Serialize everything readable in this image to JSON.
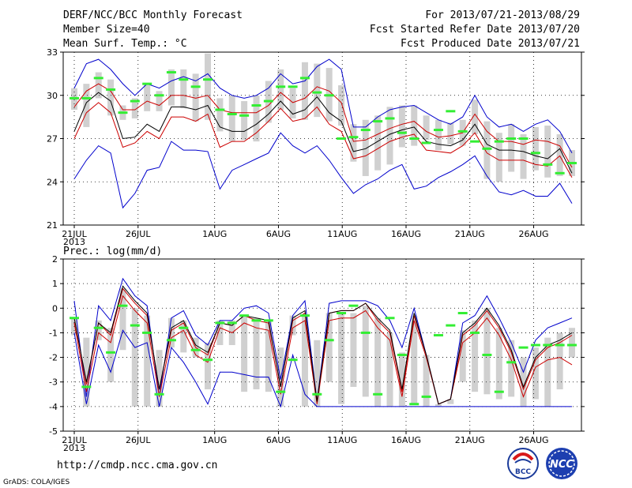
{
  "header": {
    "title": "DERF/NCC/BCC Monthly Forecast",
    "member_size": "Member Size=40",
    "variable": "Mean Surf. Temp.: °C",
    "period": "For 2013/07/21-2013/08/29",
    "fcst_started": "Fcst Started Refer Date 2013/07/20",
    "fcst_produced": "Fcst Produced Date 2013/07/21"
  },
  "footer": {
    "url": "http://cmdp.ncc.cma.gov.cn",
    "credit": "GrADS: COLA/IGES",
    "logo_left_text": "BCC",
    "logo_right_text": "NCC"
  },
  "colors": {
    "envelope": "#0000cc",
    "spread": "#cc0000",
    "mean": "#000000",
    "box": "#d0d0d0",
    "marker": "#33ee33"
  },
  "chart_data": [
    {
      "type": "line",
      "title": "Mean Surf. Temp.: °C",
      "ylim": [
        21,
        33
      ],
      "yticks": [
        21,
        24,
        27,
        30,
        33
      ],
      "xlim": [
        0,
        39
      ],
      "x_tick_positions": [
        0,
        5,
        11,
        16,
        21,
        26,
        31,
        36
      ],
      "x_tick_labels": [
        "21JUL",
        "26JUL",
        "1AUG",
        "6AUG",
        "11AUG",
        "16AUG",
        "21AUG",
        "26AUG"
      ],
      "x_year_label": "2013",
      "series": [
        {
          "name": "Maximum",
          "values": [
            30.5,
            32.2,
            32.5,
            31.8,
            30.8,
            30.0,
            30.8,
            30.5,
            31.0,
            31.3,
            31.0,
            31.5,
            30.5,
            30.0,
            29.8,
            30.0,
            30.5,
            31.5,
            30.8,
            31.0,
            32.0,
            32.5,
            31.8,
            27.8,
            27.8,
            28.5,
            29.0,
            29.2,
            29.3,
            28.8,
            28.3,
            28.0,
            28.5,
            30.0,
            28.5,
            27.8,
            28.0,
            27.5,
            28.0,
            28.3,
            27.5,
            26.0
          ]
        },
        {
          "name": "Upper",
          "values": [
            29.2,
            30.3,
            30.8,
            30.3,
            29.0,
            29.0,
            29.6,
            29.3,
            30.0,
            30.0,
            29.8,
            30.0,
            29.0,
            28.8,
            28.8,
            28.8,
            29.3,
            30.2,
            29.5,
            29.8,
            30.6,
            30.3,
            29.5,
            26.8,
            26.9,
            27.3,
            27.7,
            28.0,
            28.2,
            27.5,
            27.1,
            27.2,
            27.4,
            28.7,
            27.5,
            26.8,
            26.8,
            26.6,
            26.9,
            26.8,
            26.5,
            25.0
          ]
        },
        {
          "name": "Mean",
          "values": [
            27.5,
            29.5,
            30.2,
            29.6,
            27.0,
            27.1,
            28.0,
            27.5,
            29.2,
            29.2,
            29.0,
            29.3,
            27.8,
            27.5,
            27.5,
            28.0,
            28.7,
            29.6,
            28.7,
            29.0,
            29.9,
            28.8,
            28.2,
            26.1,
            26.3,
            26.8,
            27.3,
            27.6,
            27.8,
            26.8,
            26.6,
            26.5,
            26.9,
            28.0,
            26.6,
            26.2,
            26.2,
            26.1,
            25.8,
            25.6,
            26.3,
            24.6
          ]
        },
        {
          "name": "Lower",
          "values": [
            27.0,
            28.8,
            29.5,
            28.8,
            26.4,
            26.7,
            27.5,
            27.0,
            28.5,
            28.5,
            28.2,
            28.7,
            26.4,
            26.8,
            26.8,
            27.4,
            28.2,
            29.1,
            28.2,
            28.4,
            29.2,
            28.0,
            27.5,
            25.6,
            25.8,
            26.3,
            26.8,
            27.1,
            27.3,
            26.2,
            26.1,
            26.0,
            26.5,
            27.4,
            26.0,
            25.5,
            25.5,
            25.5,
            25.2,
            25.1,
            25.8,
            24.3
          ]
        },
        {
          "name": "Minimum",
          "values": [
            24.2,
            25.5,
            26.5,
            26.0,
            22.2,
            23.2,
            24.8,
            25.0,
            26.8,
            26.2,
            26.2,
            26.1,
            23.5,
            24.8,
            25.2,
            25.6,
            26.0,
            27.4,
            26.5,
            26.0,
            26.5,
            25.5,
            24.3,
            23.2,
            23.8,
            24.2,
            24.8,
            25.2,
            23.5,
            23.7,
            24.3,
            24.7,
            25.2,
            25.8,
            24.4,
            23.3,
            23.1,
            23.4,
            23.0,
            23.0,
            23.9,
            22.5
          ]
        },
        {
          "name": "Box Top",
          "values": [
            30.5,
            30.8,
            31.6,
            31.1,
            29.3,
            29.8,
            30.8,
            30.3,
            31.8,
            31.8,
            31.5,
            32.9,
            29.8,
            30.0,
            29.6,
            30.0,
            31.0,
            31.8,
            30.5,
            32.3,
            32.2,
            31.9,
            30.7,
            28.0,
            28.3,
            28.6,
            29.2,
            29.3,
            29.3,
            28.6,
            28.3,
            28.1,
            28.3,
            29.7,
            28.2,
            27.4,
            28.0,
            27.3,
            27.8,
            27.9,
            27.3,
            26.2
          ]
        },
        {
          "name": "Box Bottom",
          "values": [
            29.0,
            27.8,
            29.8,
            28.6,
            28.3,
            28.4,
            28.9,
            28.9,
            29.3,
            29.1,
            28.2,
            28.3,
            27.5,
            26.8,
            26.9,
            26.8,
            28.1,
            29.0,
            28.4,
            28.3,
            28.5,
            28.2,
            27.9,
            25.4,
            24.4,
            24.8,
            25.2,
            26.4,
            26.5,
            26.9,
            26.2,
            26.6,
            26.5,
            27.3,
            24.2,
            24.0,
            24.7,
            24.2,
            24.8,
            24.3,
            24.4,
            24.4
          ]
        },
        {
          "name": "Marker",
          "values": [
            29.8,
            29.8,
            31.2,
            30.4,
            28.8,
            29.6,
            30.8,
            30.0,
            31.6,
            31.1,
            30.6,
            31.1,
            29.0,
            28.7,
            28.6,
            29.3,
            29.6,
            30.6,
            30.6,
            31.2,
            30.2,
            30.0,
            27.0,
            27.1,
            27.6,
            28.2,
            28.4,
            27.4,
            27.0,
            26.7,
            27.6,
            28.9,
            27.5,
            26.8,
            26.3,
            26.8,
            27.0,
            27.0,
            26.0,
            25.2,
            24.6,
            25.3
          ]
        }
      ]
    },
    {
      "type": "line",
      "title": "Prec.: log(mm/d)",
      "ylim": [
        -5,
        2
      ],
      "yticks": [
        -5,
        -4,
        -3,
        -2,
        -1,
        0,
        1,
        2
      ],
      "xlim": [
        0,
        39
      ],
      "x_tick_positions": [
        0,
        5,
        11,
        16,
        21,
        26,
        31,
        36
      ],
      "x_tick_labels": [
        "21JUL",
        "26JUL",
        "1AUG",
        "6AUG",
        "11AUG",
        "16AUG",
        "21AUG",
        "26AUG"
      ],
      "x_year_label": "2013",
      "series": [
        {
          "name": "Maximum",
          "values": [
            0.3,
            -3.6,
            0.1,
            -0.5,
            1.2,
            0.5,
            0.1,
            -3.6,
            -0.4,
            -0.1,
            -1.1,
            -1.5,
            -0.5,
            -0.5,
            0.0,
            0.1,
            -0.2,
            -2.9,
            -0.3,
            0.3,
            -3.8,
            0.2,
            0.3,
            0.3,
            0.3,
            0.1,
            -0.5,
            -1.6,
            0.0,
            -1.9,
            -3.9,
            -3.7,
            -0.6,
            -0.3,
            0.5,
            -0.4,
            -1.4,
            -2.6,
            -1.3,
            -0.8,
            -0.6,
            -0.4
          ]
        },
        {
          "name": "Upper",
          "values": [
            -0.4,
            -3.1,
            -0.6,
            -1.1,
            0.8,
            0.2,
            -0.3,
            -3.3,
            -0.9,
            -0.6,
            -1.6,
            -1.9,
            -0.6,
            -0.7,
            -0.3,
            -0.5,
            -0.6,
            -3.2,
            -0.5,
            -0.2,
            -3.8,
            -0.2,
            -0.1,
            -0.1,
            0.2,
            -0.5,
            -1.0,
            -3.4,
            -0.3,
            -1.9,
            -3.9,
            -3.7,
            -1.1,
            -0.7,
            -0.1,
            -0.8,
            -1.8,
            -3.3,
            -2.1,
            -1.6,
            -1.4,
            -1.1
          ]
        },
        {
          "name": "Mean",
          "values": [
            -0.4,
            -3.0,
            -0.6,
            -1.0,
            0.9,
            0.3,
            -0.2,
            -3.3,
            -0.8,
            -0.5,
            -1.5,
            -1.8,
            -0.6,
            -0.7,
            -0.3,
            -0.4,
            -0.5,
            -3.2,
            -0.4,
            -0.1,
            -3.8,
            -0.2,
            -0.1,
            -0.1,
            0.2,
            -0.4,
            -0.9,
            -3.3,
            -0.2,
            -1.9,
            -3.9,
            -3.7,
            -1.0,
            -0.6,
            0.0,
            -0.7,
            -1.7,
            -3.2,
            -2.0,
            -1.5,
            -1.3,
            -1.0
          ]
        },
        {
          "name": "Lower",
          "values": [
            -0.6,
            -3.4,
            -1.0,
            -1.4,
            0.5,
            -0.1,
            -0.6,
            -3.6,
            -1.2,
            -0.9,
            -1.9,
            -2.2,
            -0.8,
            -1.0,
            -0.6,
            -0.8,
            -0.9,
            -3.5,
            -0.8,
            -0.5,
            -3.9,
            -0.5,
            -0.4,
            -0.4,
            -0.1,
            -0.8,
            -1.3,
            -3.6,
            -0.5,
            -2.0,
            -3.9,
            -3.7,
            -1.4,
            -1.0,
            -0.4,
            -1.1,
            -2.1,
            -3.6,
            -2.4,
            -2.1,
            -2.0,
            -2.3
          ]
        },
        {
          "name": "Minimum",
          "values": [
            -1.0,
            -3.9,
            -1.5,
            -2.6,
            -0.9,
            -1.6,
            -1.4,
            -4.0,
            -1.6,
            -2.2,
            -3.0,
            -3.9,
            -2.6,
            -2.6,
            -2.7,
            -2.8,
            -2.8,
            -4.0,
            -1.9,
            -3.5,
            -4.0,
            -4.0,
            -4.0,
            -4.0,
            -4.0,
            -4.0,
            -4.0,
            -4.0,
            -4.0,
            -4.0,
            -4.0,
            -4.0,
            -4.0,
            -4.0,
            -4.0,
            -4.0,
            -4.0,
            -4.0,
            -4.0,
            -4.0,
            -4.0,
            -4.0
          ]
        },
        {
          "name": "Box Top",
          "values": [
            -0.4,
            -1.2,
            -0.5,
            -0.8,
            0.8,
            0.0,
            -0.3,
            -1.7,
            -0.4,
            -0.5,
            -1.2,
            -1.4,
            -0.5,
            -0.5,
            -0.3,
            -0.4,
            -0.5,
            -1.6,
            -0.3,
            -0.3,
            -1.3,
            -0.2,
            -0.2,
            -0.2,
            0.1,
            -0.4,
            -1.0,
            -1.8,
            -0.3,
            -1.9,
            -3.9,
            -3.7,
            -0.9,
            -0.5,
            0.0,
            -0.8,
            -1.3,
            -2.0,
            -1.6,
            -1.2,
            -1.0,
            -0.8
          ]
        },
        {
          "name": "Box Bottom",
          "values": [
            -1.1,
            -4.0,
            -1.3,
            -3.0,
            -1.7,
            -4.0,
            -4.0,
            -4.0,
            -1.6,
            -1.8,
            -2.0,
            -3.3,
            -1.5,
            -1.5,
            -3.4,
            -3.3,
            -3.4,
            -4.0,
            -1.1,
            -4.0,
            -4.0,
            -3.0,
            -3.9,
            -3.2,
            -3.6,
            -4.0,
            -4.0,
            -4.0,
            -3.9,
            -4.0,
            -4.0,
            -3.9,
            -3.0,
            -3.4,
            -3.5,
            -3.7,
            -3.6,
            -4.0,
            -3.7,
            -4.0,
            -3.3,
            -2.0
          ]
        },
        {
          "name": "Marker",
          "values": [
            -0.4,
            -3.2,
            -0.8,
            -1.8,
            0.1,
            -0.7,
            -1.0,
            -3.5,
            -1.3,
            -0.8,
            -1.7,
            -2.1,
            -0.6,
            -0.6,
            -0.3,
            -0.5,
            -0.5,
            -3.4,
            -2.1,
            -0.3,
            -3.5,
            -1.3,
            -0.2,
            0.1,
            -1.0,
            -3.5,
            -0.4,
            -1.9,
            -3.9,
            -3.6,
            -1.1,
            -0.7,
            -0.2,
            -1.0,
            -1.9,
            -3.4,
            -2.2,
            -1.6,
            -1.5,
            -1.5,
            -1.5,
            -1.5
          ]
        }
      ]
    }
  ]
}
